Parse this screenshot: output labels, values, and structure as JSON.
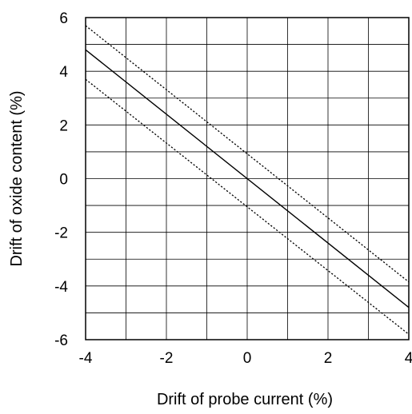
{
  "chart_data": {
    "type": "line",
    "title": "",
    "xlabel": "Drift of probe current (%)",
    "ylabel": "Drift of oxide content (%)",
    "xlim": [
      -4,
      4
    ],
    "ylim": [
      -6,
      6
    ],
    "x_ticks": [
      "-4",
      "-2",
      "0",
      "2",
      "4"
    ],
    "y_ticks": [
      "6",
      "4",
      "2",
      "0",
      "-2",
      "-4",
      "-6"
    ],
    "grid": true,
    "legend": "none",
    "series": [
      {
        "style": "solid",
        "x": [
          -4,
          4
        ],
        "y": [
          4.8,
          -4.8
        ]
      },
      {
        "style": "dotted",
        "x": [
          -4,
          4
        ],
        "y": [
          5.7,
          -3.85
        ]
      },
      {
        "style": "dotted",
        "x": [
          -4,
          4
        ],
        "y": [
          3.7,
          -5.8
        ]
      }
    ]
  }
}
